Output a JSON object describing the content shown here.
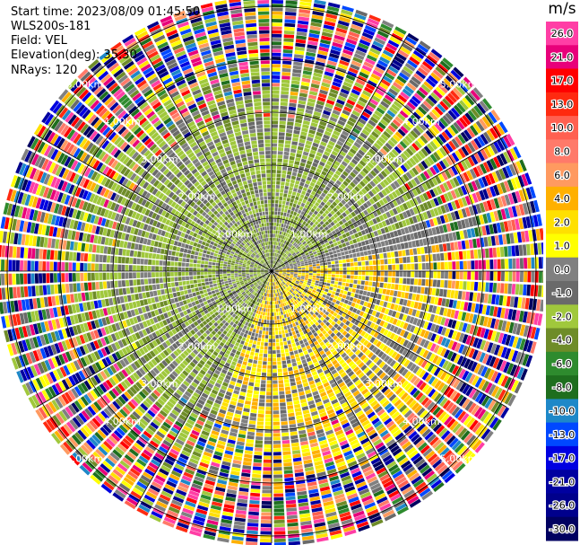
{
  "info": {
    "start_time": "Start time: 2023/08/09 01:45:50",
    "site": "WLS200s-181",
    "field": "Field: VEL",
    "elevation": "Elevation(deg): 35.30",
    "nrays": "NRays: 120"
  },
  "range_labels": [
    "1.00km",
    "2.00km",
    "3.00km",
    "4.00km",
    "5.00km"
  ],
  "nrays": 120,
  "colorbar": {
    "unit": "m/s",
    "ticks": [
      "26.0",
      "21.0",
      "17.0",
      "13.0",
      "10.0",
      "8.0",
      "6.0",
      "4.0",
      "2.0",
      "1.0",
      "0.0",
      "-1.0",
      "-2.0",
      "-4.0",
      "-6.0",
      "-8.0",
      "-10.0",
      "-13.0",
      "-17.0",
      "-21.0",
      "-26.0",
      "-30.0"
    ],
    "colors": [
      "#ff3ea5",
      "#e8007a",
      "#ff0000",
      "#ff2a10",
      "#ff6050",
      "#ff7a6a",
      "#ff9a60",
      "#ffb000",
      "#ffe000",
      "#ffff00",
      "#808080",
      "#6a6a6a",
      "#a0c83c",
      "#6e8c28",
      "#2e8b2e",
      "#1e6e1e",
      "#1e88c8",
      "#0048ff",
      "#0000e0",
      "#0000a0",
      "#00008c",
      "#000060"
    ]
  }
}
